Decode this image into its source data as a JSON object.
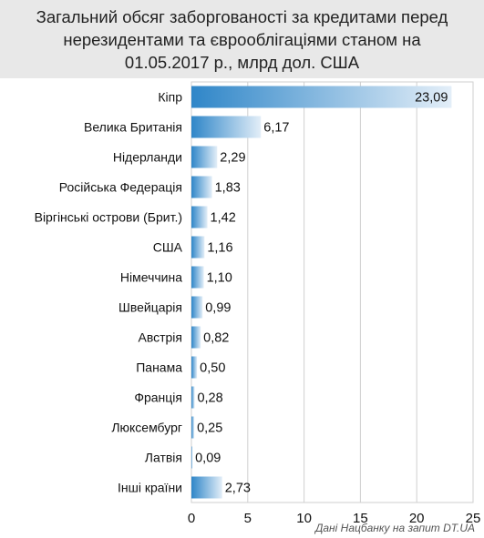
{
  "chart_data": {
    "type": "bar",
    "orientation": "horizontal",
    "title": "Загальний обсяг заборгованості за кредитами перед\nнерезидентами та єврооблігаціями станом на\n01.05.2017 р., млрд дол. США",
    "categories": [
      "Кіпр",
      "Велика Британія",
      "Нідерланди",
      "Російська Федерація",
      "Віргінські острови (Брит.)",
      "США",
      "Німеччина",
      "Швейцарія",
      "Австрія",
      "Панама",
      "Франція",
      "Люксембург",
      "Латвія",
      "Інші країни"
    ],
    "values": [
      23.09,
      6.17,
      2.29,
      1.83,
      1.42,
      1.16,
      1.1,
      0.99,
      0.82,
      0.5,
      0.28,
      0.25,
      0.09,
      2.73
    ],
    "value_labels": [
      "23,09",
      "6,17",
      "2,29",
      "1,83",
      "1,42",
      "1,16",
      "1,10",
      "0,99",
      "0,82",
      "0,50",
      "0,28",
      "0,25",
      "0,09",
      "2,73"
    ],
    "xlim": [
      0,
      25
    ],
    "xticks": [
      0,
      5,
      10,
      15,
      20,
      25
    ],
    "grid": true,
    "bar_color_start": "#2f86c8",
    "bar_color_end": "#e3eef8",
    "source": "Дані Нацбанку на запит DT.UA"
  }
}
